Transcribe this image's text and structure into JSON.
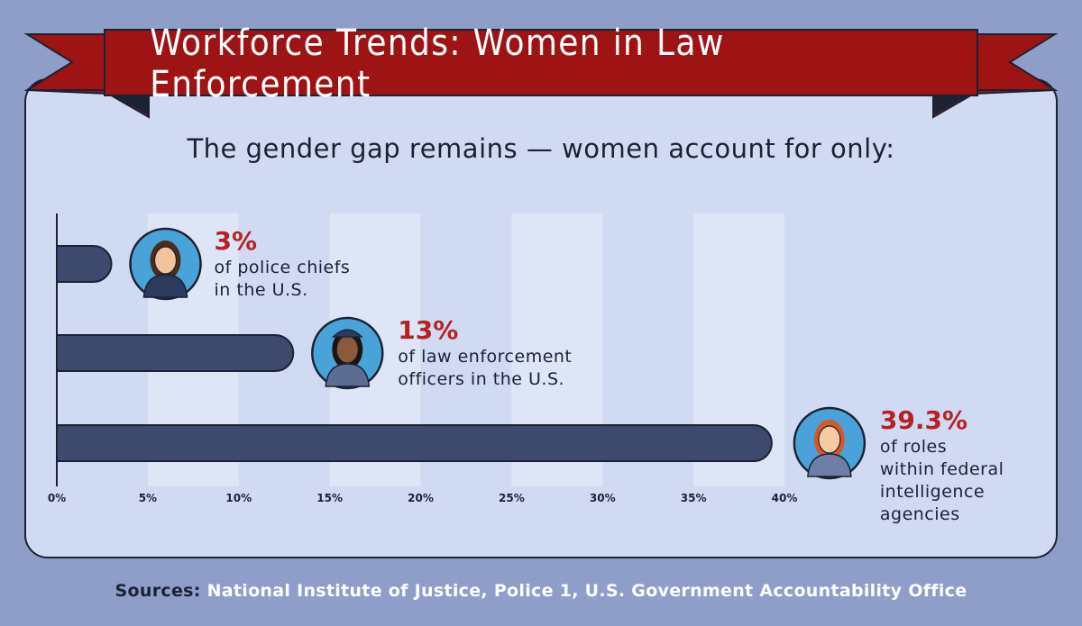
{
  "header": {
    "title": "Workforce Trends: Women in Law Enforcement",
    "subtitle": "The gender gap remains — women account for only:"
  },
  "chart_data": {
    "type": "bar",
    "orientation": "horizontal",
    "title": "Workforce Trends: Women in Law Enforcement",
    "subtitle": "The gender gap remains — women account for only:",
    "unit": "%",
    "xlim": [
      0,
      40
    ],
    "xticks": [
      "0%",
      "5%",
      "10%",
      "15%",
      "20%",
      "25%",
      "30%",
      "35%",
      "40%"
    ],
    "grid": "alternating vertical bands",
    "bars": [
      {
        "value": 3,
        "value_label": "3%",
        "lines": [
          "of police chiefs",
          "in the U.S."
        ],
        "icon": "police-chief-woman-icon"
      },
      {
        "value": 13,
        "value_label": "13%",
        "lines": [
          "of law enforcement",
          "officers in the U.S."
        ],
        "icon": "police-officer-woman-icon"
      },
      {
        "value": 39.3,
        "value_label": "39.3%",
        "lines": [
          "of roles",
          "within federal",
          "intelligence",
          "agencies"
        ],
        "icon": "federal-agent-woman-icon"
      }
    ]
  },
  "footer": {
    "sources_label": "Sources:",
    "sources_text": "National Institute of Justice, Police 1, U.S. Government Accountability Office"
  },
  "colors": {
    "background": "#8f9dc9",
    "card": "#d0daf2",
    "band": "#dee5f6",
    "bar": "#3d4a6e",
    "ribbon": "#9e1414",
    "accent": "#b52226",
    "ink": "#1a2233"
  }
}
